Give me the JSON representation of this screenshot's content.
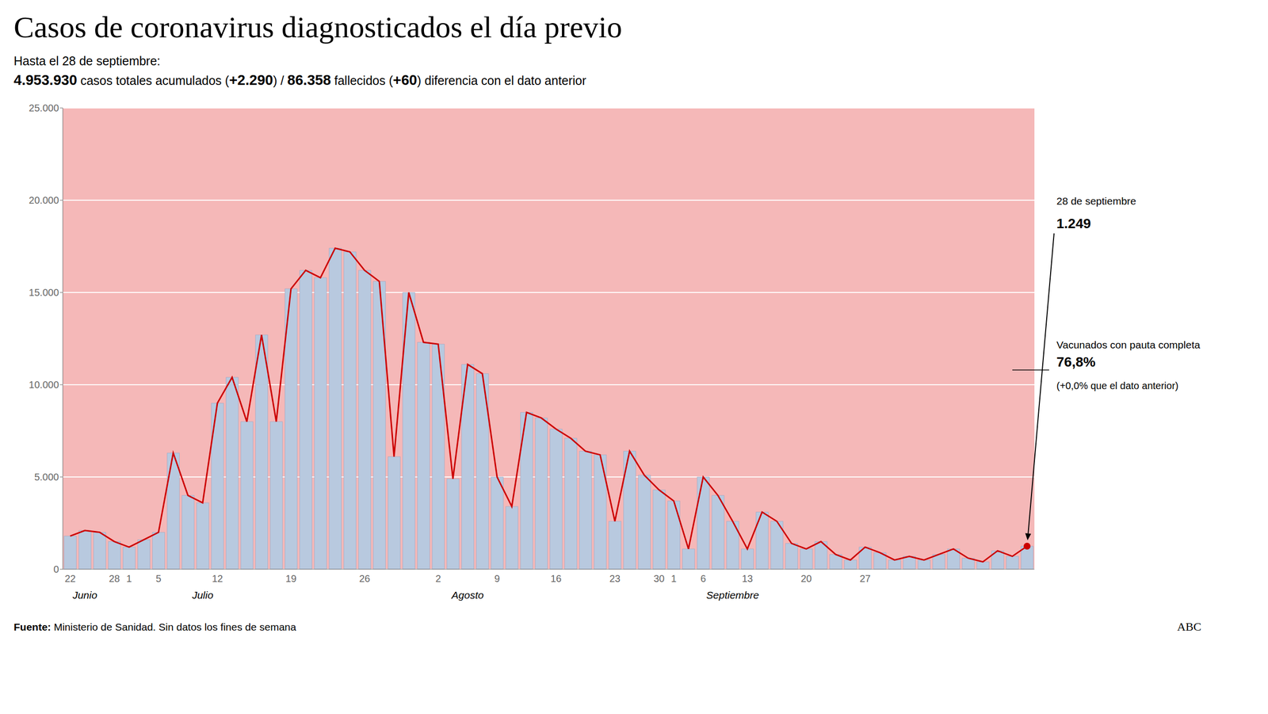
{
  "chart_data": {
    "type": "bar",
    "title": "Casos de coronavirus diagnosticados el día previo",
    "subtitle": [
      "Hasta el 28 de septiembre:",
      "4.953.930 casos totales acumulados (+2.290) / 86.358 fallecidos (+60) diferencia con el dato anterior"
    ],
    "categories": [
      "22",
      null,
      null,
      "28",
      "1",
      null,
      "5",
      null,
      null,
      null,
      "12",
      null,
      null,
      null,
      null,
      "19",
      null,
      null,
      null,
      null,
      "26",
      null,
      null,
      null,
      null,
      "2",
      null,
      null,
      null,
      "9",
      null,
      null,
      null,
      "16",
      null,
      null,
      null,
      "23",
      null,
      null,
      "30",
      "1",
      null,
      "6",
      null,
      null,
      "13",
      null,
      null,
      null,
      "20",
      null,
      null,
      null,
      "27",
      null,
      null,
      null,
      null,
      null,
      null,
      null,
      null,
      null,
      null,
      null
    ],
    "x_groups": [
      null,
      "Junio",
      null,
      null,
      null,
      null,
      null,
      null,
      null,
      "Julio",
      null,
      null,
      null,
      null,
      null,
      null,
      null,
      null,
      null,
      null,
      null,
      null,
      null,
      null,
      null,
      null,
      null,
      "Agosto",
      null,
      null,
      null,
      null,
      null,
      null,
      null,
      null,
      null,
      null,
      null,
      null,
      null,
      null,
      null,
      null,
      null,
      "Septiembre",
      null,
      null,
      null,
      null,
      null,
      null,
      null,
      null,
      null,
      null,
      null,
      null,
      null,
      null,
      null,
      null,
      null,
      null,
      null,
      null
    ],
    "series": [
      {
        "type": "bar",
        "color": "#b8c9df",
        "values": [
          1800,
          2100,
          2000,
          1500,
          1200,
          1600,
          2000,
          6300,
          4000,
          3600,
          9000,
          10400,
          8000,
          12700,
          8000,
          15200,
          16200,
          15800,
          17400,
          17200,
          16200,
          15600,
          6100,
          15000,
          12300,
          12200,
          4900,
          11100,
          10600,
          5000,
          3400,
          8500,
          8200,
          7600,
          7100,
          6400,
          6200,
          2600,
          6400,
          5100,
          4300,
          3700,
          1100,
          5000,
          4000,
          2600,
          1100,
          3100,
          2600,
          1400,
          1100,
          1500,
          800,
          500,
          1200,
          900,
          500,
          700,
          500,
          800,
          1100,
          600,
          400,
          1000,
          700,
          1249
        ]
      },
      {
        "type": "line",
        "color": "#cc0000",
        "marker": "last",
        "values": [
          1800,
          2100,
          2000,
          1500,
          1200,
          1600,
          2000,
          6300,
          4000,
          3600,
          9000,
          10400,
          8000,
          12700,
          8000,
          15200,
          16200,
          15800,
          17400,
          17200,
          16200,
          15600,
          6100,
          15000,
          12300,
          12200,
          4900,
          11100,
          10600,
          5000,
          3400,
          8500,
          8200,
          7600,
          7100,
          6400,
          6200,
          2600,
          6400,
          5100,
          4300,
          3700,
          1100,
          5000,
          4000,
          2600,
          1100,
          3100,
          2600,
          1400,
          1100,
          1500,
          800,
          500,
          1200,
          900,
          500,
          700,
          500,
          800,
          1100,
          600,
          400,
          1000,
          700,
          1249
        ]
      }
    ],
    "ylim": [
      0,
      25000
    ],
    "yticks": [
      0,
      {
        "value": 5000,
        "label": "5.000"
      },
      {
        "value": 10000,
        "label": "10.000"
      },
      {
        "value": 15000,
        "label": "15.000"
      },
      {
        "value": 20000,
        "label": "20.000"
      },
      {
        "value": 25000,
        "label": "25.000"
      }
    ],
    "grid": true,
    "plot_background": "#f5b8b8",
    "annotations": {
      "date": "28 de septiembre",
      "value": "1.249",
      "vaccine": "Vacunados con pauta completa",
      "vaccine_pct": "76,8%",
      "vaccine_change": "(+0,0% que el dato anterior)",
      "vaccine_level": 10800
    },
    "footer": {
      "source_label": "Fuente:",
      "source": " Ministerio de Sanidad. Sin datos los fines de semana",
      "brand": "ABC"
    }
  }
}
